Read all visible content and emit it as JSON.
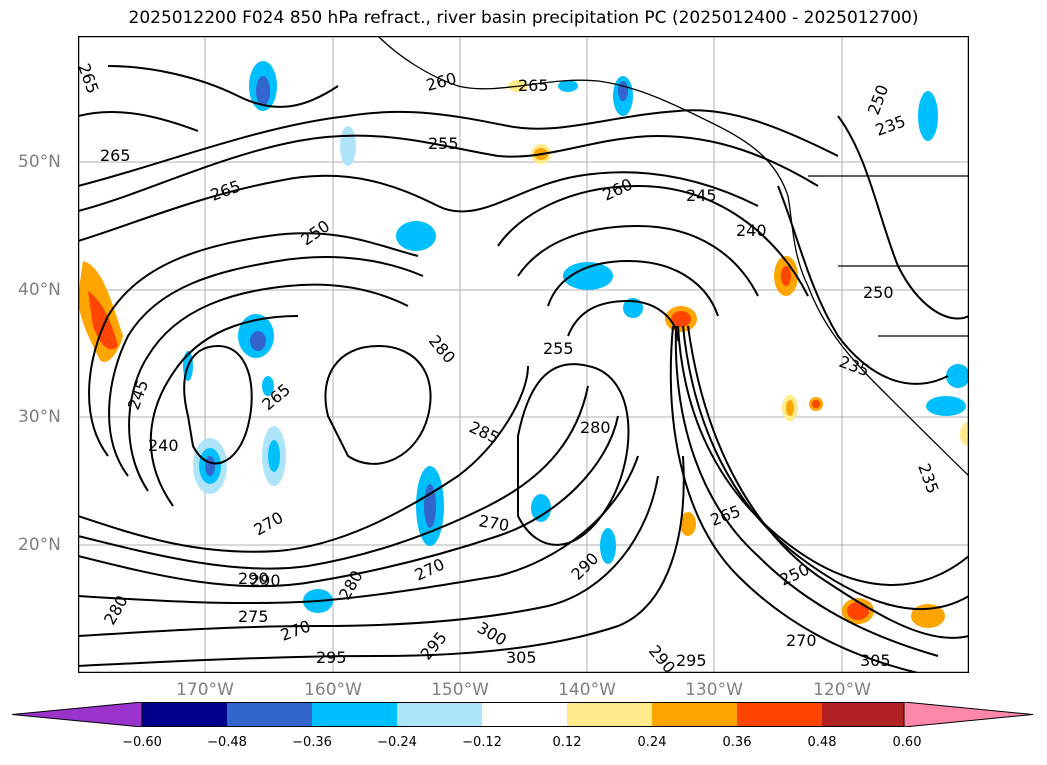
{
  "title": "2025012200 F024 850 hPa refract., river basin precipitation PC (2025012400 - 2025012700)",
  "lat_labels": [
    "50°N",
    "40°N",
    "30°N",
    "20°N"
  ],
  "lon_labels": [
    "170°W",
    "160°W",
    "150°W",
    "140°W",
    "130°W",
    "120°W"
  ],
  "contour_labels": [
    "265",
    "265",
    "265",
    "260",
    "255",
    "250",
    "260",
    "245",
    "240",
    "265",
    "250",
    "235",
    "280",
    "255",
    "245",
    "265",
    "285",
    "280",
    "240",
    "270",
    "270",
    "265",
    "250",
    "290",
    "275",
    "270",
    "280",
    "290",
    "295",
    "300",
    "305",
    "290",
    "295",
    "270",
    "290",
    "270",
    "280",
    "305",
    "295",
    "235",
    "235",
    "250"
  ],
  "colorbar": {
    "ticks": [
      "−0.60",
      "−0.48",
      "−0.36",
      "−0.24",
      "−0.12",
      "0.12",
      "0.24",
      "0.36",
      "0.48",
      "0.60"
    ],
    "colors": [
      "#9933cc",
      "#00008b",
      "#3366cc",
      "#00bfff",
      "#aee4fa",
      "#ffffff",
      "#ffeb8c",
      "#ffa500",
      "#ff4500",
      "#b22222",
      "#ff88aa"
    ]
  },
  "icons": {
    "grid": "lat-lon-gridlines",
    "coast": "coastline"
  }
}
